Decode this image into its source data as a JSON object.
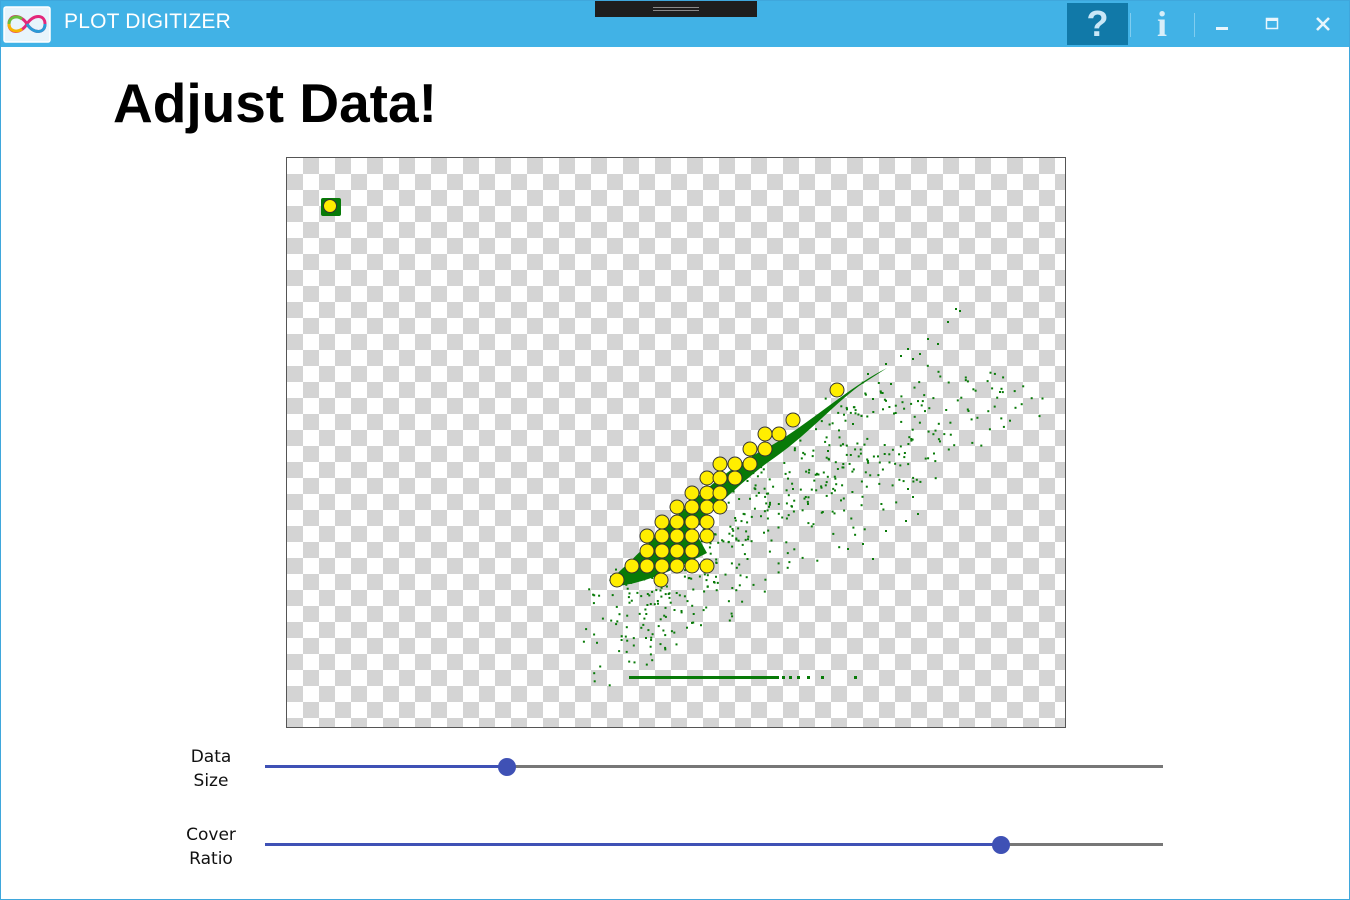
{
  "window": {
    "title": "PLOT DIGITIZER",
    "logo_icon": "infinity-logo-icon",
    "buttons": {
      "help": "?",
      "info": "i",
      "help_icon": "help-question-icon",
      "info_icon": "info-icon",
      "minimize_icon": "minimize-icon",
      "maximize_icon": "maximize-icon",
      "close_icon": "close-icon"
    }
  },
  "page": {
    "heading": "Adjust Data!"
  },
  "sliders": [
    {
      "label_line1": "Data",
      "label_line2": "Size",
      "value": 0.27
    },
    {
      "label_line1": "Cover",
      "label_line2": "Ratio",
      "value": 0.82
    }
  ],
  "colors": {
    "title_bar": "#41b2e6",
    "help_active": "#1179a8",
    "slider_accent": "#3f51b5",
    "data_green": "#087a08",
    "marker_yellow": "#ffee00"
  }
}
